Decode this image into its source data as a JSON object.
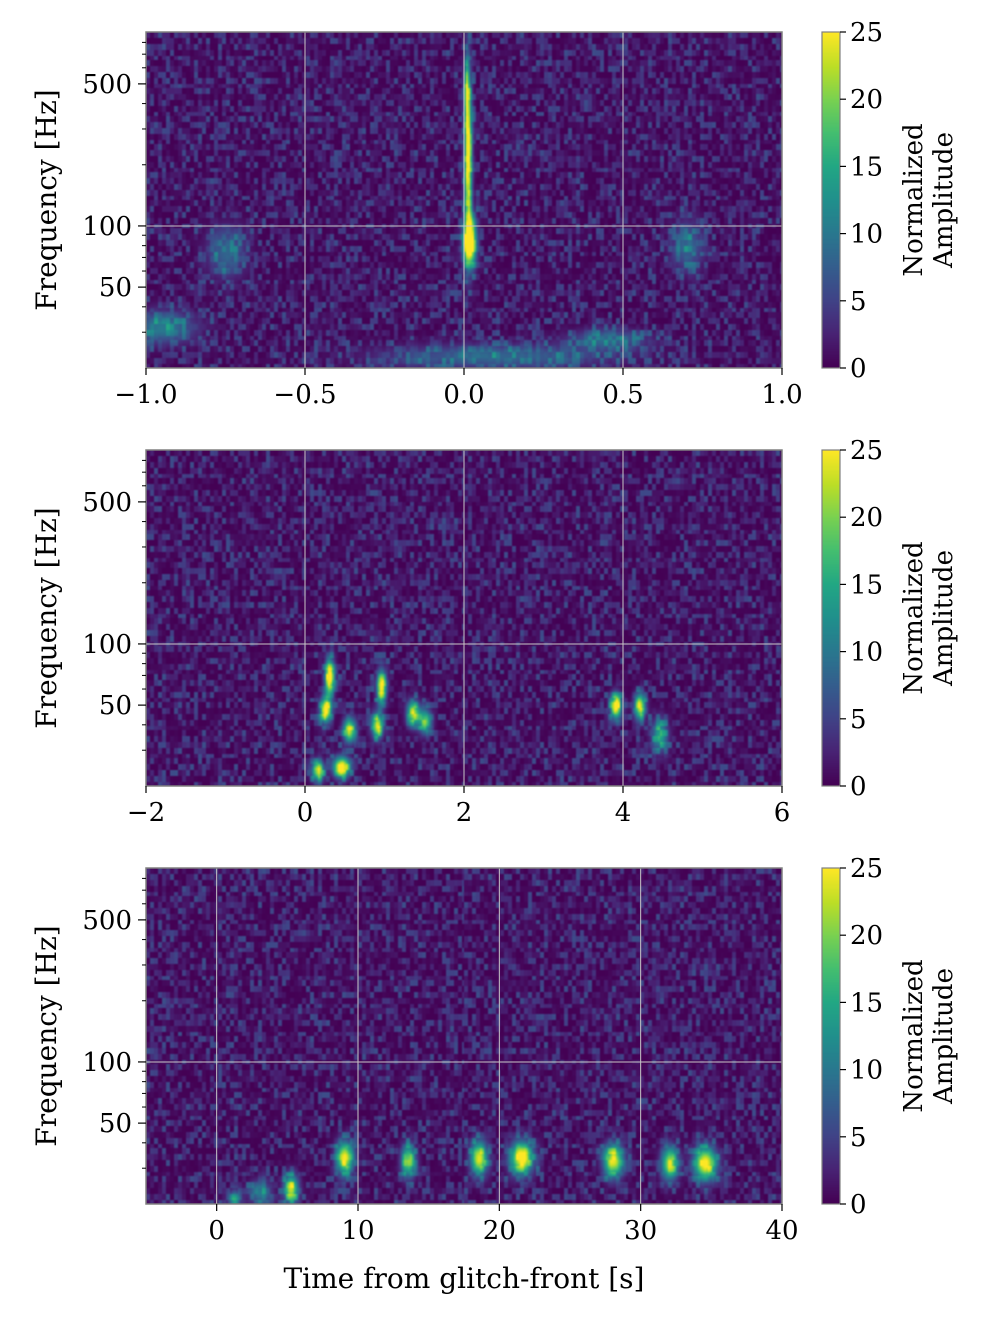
{
  "colors": {
    "colormap": "viridis",
    "background_low": "#440154",
    "high": "#fde725",
    "grid": "#c8c8c8",
    "spine": "#808080"
  },
  "shared": {
    "xlabel_bottom": "Time from glitch-front [s]",
    "ylabel": "Frequency [Hz]",
    "colorbar_label_line1": "Normalized",
    "colorbar_label_line2": "Amplitude"
  },
  "chart_data": [
    {
      "type": "heatmap",
      "xlim": [
        -1.0,
        1.0
      ],
      "ylim": [
        20,
        900
      ],
      "yscale": "log",
      "xticks": [
        -1.0,
        -0.5,
        0.0,
        0.5,
        1.0
      ],
      "xtick_labels": [
        "−1.0",
        "−0.5",
        "0.0",
        "0.5",
        "1.0"
      ],
      "yticks": [
        50,
        100,
        500
      ],
      "ytick_labels": [
        "50",
        "100",
        "500"
      ],
      "ylabel": "Frequency [Hz]",
      "grid": true,
      "colorbar": {
        "range": [
          0,
          25
        ],
        "ticks": [
          0,
          5,
          10,
          15,
          20,
          25
        ],
        "tick_labels": [
          "0",
          "5",
          "10",
          "15",
          "20",
          "25"
        ]
      },
      "features": [
        {
          "kind": "blob",
          "t": 0.01,
          "f": 230,
          "tw": 0.012,
          "lf": 0.38,
          "a": 26
        },
        {
          "kind": "blob",
          "t": 0.015,
          "f": 85,
          "tw": 0.02,
          "lf": 0.12,
          "a": 30
        },
        {
          "kind": "blob",
          "t": 0.005,
          "f": 480,
          "tw": 0.008,
          "lf": 0.15,
          "a": 12
        },
        {
          "kind": "blob",
          "t": 0.1,
          "f": 23,
          "tw": 0.35,
          "lf": 0.06,
          "a": 8
        },
        {
          "kind": "blob",
          "t": 0.45,
          "f": 28,
          "tw": 0.12,
          "lf": 0.05,
          "a": 8
        },
        {
          "kind": "blob",
          "t": -0.95,
          "f": 32,
          "tw": 0.1,
          "lf": 0.08,
          "a": 10
        },
        {
          "kind": "blob",
          "t": -0.75,
          "f": 75,
          "tw": 0.06,
          "lf": 0.12,
          "a": 8
        },
        {
          "kind": "blob",
          "t": 0.7,
          "f": 80,
          "tw": 0.05,
          "lf": 0.12,
          "a": 8
        }
      ]
    },
    {
      "type": "heatmap",
      "xlim": [
        -2,
        6
      ],
      "ylim": [
        20,
        900
      ],
      "yscale": "log",
      "xticks": [
        -2,
        0,
        2,
        4,
        6
      ],
      "xtick_labels": [
        "−2",
        "0",
        "2",
        "4",
        "6"
      ],
      "yticks": [
        50,
        100,
        500
      ],
      "ytick_labels": [
        "50",
        "100",
        "500"
      ],
      "ylabel": "Frequency [Hz]",
      "grid": true,
      "colorbar": {
        "range": [
          0,
          25
        ],
        "ticks": [
          0,
          5,
          10,
          15,
          20,
          25
        ],
        "tick_labels": [
          "0",
          "5",
          "10",
          "15",
          "20",
          "25"
        ]
      },
      "features": [
        {
          "kind": "blob",
          "t": 0.3,
          "f": 70,
          "tw": 0.06,
          "lf": 0.08,
          "a": 28
        },
        {
          "kind": "blob",
          "t": 0.25,
          "f": 48,
          "tw": 0.07,
          "lf": 0.06,
          "a": 28
        },
        {
          "kind": "blob",
          "t": 0.45,
          "f": 25,
          "tw": 0.1,
          "lf": 0.05,
          "a": 28
        },
        {
          "kind": "blob",
          "t": 0.15,
          "f": 24,
          "tw": 0.08,
          "lf": 0.05,
          "a": 22
        },
        {
          "kind": "blob",
          "t": 0.95,
          "f": 62,
          "tw": 0.06,
          "lf": 0.08,
          "a": 26
        },
        {
          "kind": "blob",
          "t": 0.9,
          "f": 40,
          "tw": 0.07,
          "lf": 0.06,
          "a": 24
        },
        {
          "kind": "blob",
          "t": 0.55,
          "f": 38,
          "tw": 0.08,
          "lf": 0.06,
          "a": 22
        },
        {
          "kind": "blob",
          "t": 1.35,
          "f": 46,
          "tw": 0.08,
          "lf": 0.06,
          "a": 22
        },
        {
          "kind": "blob",
          "t": 1.5,
          "f": 42,
          "tw": 0.08,
          "lf": 0.06,
          "a": 18
        },
        {
          "kind": "blob",
          "t": 3.9,
          "f": 50,
          "tw": 0.07,
          "lf": 0.06,
          "a": 26
        },
        {
          "kind": "blob",
          "t": 4.2,
          "f": 50,
          "tw": 0.07,
          "lf": 0.06,
          "a": 24
        },
        {
          "kind": "blob",
          "t": 4.45,
          "f": 36,
          "tw": 0.1,
          "lf": 0.08,
          "a": 14
        }
      ]
    },
    {
      "type": "heatmap",
      "xlim": [
        -5,
        40
      ],
      "ylim": [
        20,
        900
      ],
      "yscale": "log",
      "xticks": [
        0,
        10,
        20,
        30,
        40
      ],
      "xtick_labels": [
        "0",
        "10",
        "20",
        "30",
        "40"
      ],
      "yticks": [
        50,
        100,
        500
      ],
      "ytick_labels": [
        "50",
        "100",
        "500"
      ],
      "ylabel": "Frequency [Hz]",
      "xlabel": "Time from glitch-front [s]",
      "grid": true,
      "colorbar": {
        "range": [
          0,
          25
        ],
        "ticks": [
          0,
          5,
          10,
          15,
          20,
          25
        ],
        "tick_labels": [
          "0",
          "5",
          "10",
          "15",
          "20",
          "25"
        ]
      },
      "features": [
        {
          "kind": "blob",
          "t": 9.0,
          "f": 34,
          "tw": 0.6,
          "lf": 0.08,
          "a": 24
        },
        {
          "kind": "blob",
          "t": 13.5,
          "f": 33,
          "tw": 0.5,
          "lf": 0.08,
          "a": 20
        },
        {
          "kind": "blob",
          "t": 18.5,
          "f": 34,
          "tw": 0.6,
          "lf": 0.08,
          "a": 24
        },
        {
          "kind": "blob",
          "t": 21.5,
          "f": 34,
          "tw": 0.8,
          "lf": 0.08,
          "a": 26
        },
        {
          "kind": "blob",
          "t": 28.0,
          "f": 33,
          "tw": 0.7,
          "lf": 0.08,
          "a": 24
        },
        {
          "kind": "blob",
          "t": 32.0,
          "f": 32,
          "tw": 0.6,
          "lf": 0.08,
          "a": 22
        },
        {
          "kind": "blob",
          "t": 34.5,
          "f": 32,
          "tw": 0.8,
          "lf": 0.08,
          "a": 26
        },
        {
          "kind": "blob",
          "t": 5.2,
          "f": 24,
          "tw": 0.5,
          "lf": 0.07,
          "a": 22
        },
        {
          "kind": "blob",
          "t": 3.0,
          "f": 23,
          "tw": 0.8,
          "lf": 0.06,
          "a": 10
        },
        {
          "kind": "blob",
          "t": 1.2,
          "f": 21,
          "tw": 0.4,
          "lf": 0.05,
          "a": 14
        }
      ]
    }
  ]
}
